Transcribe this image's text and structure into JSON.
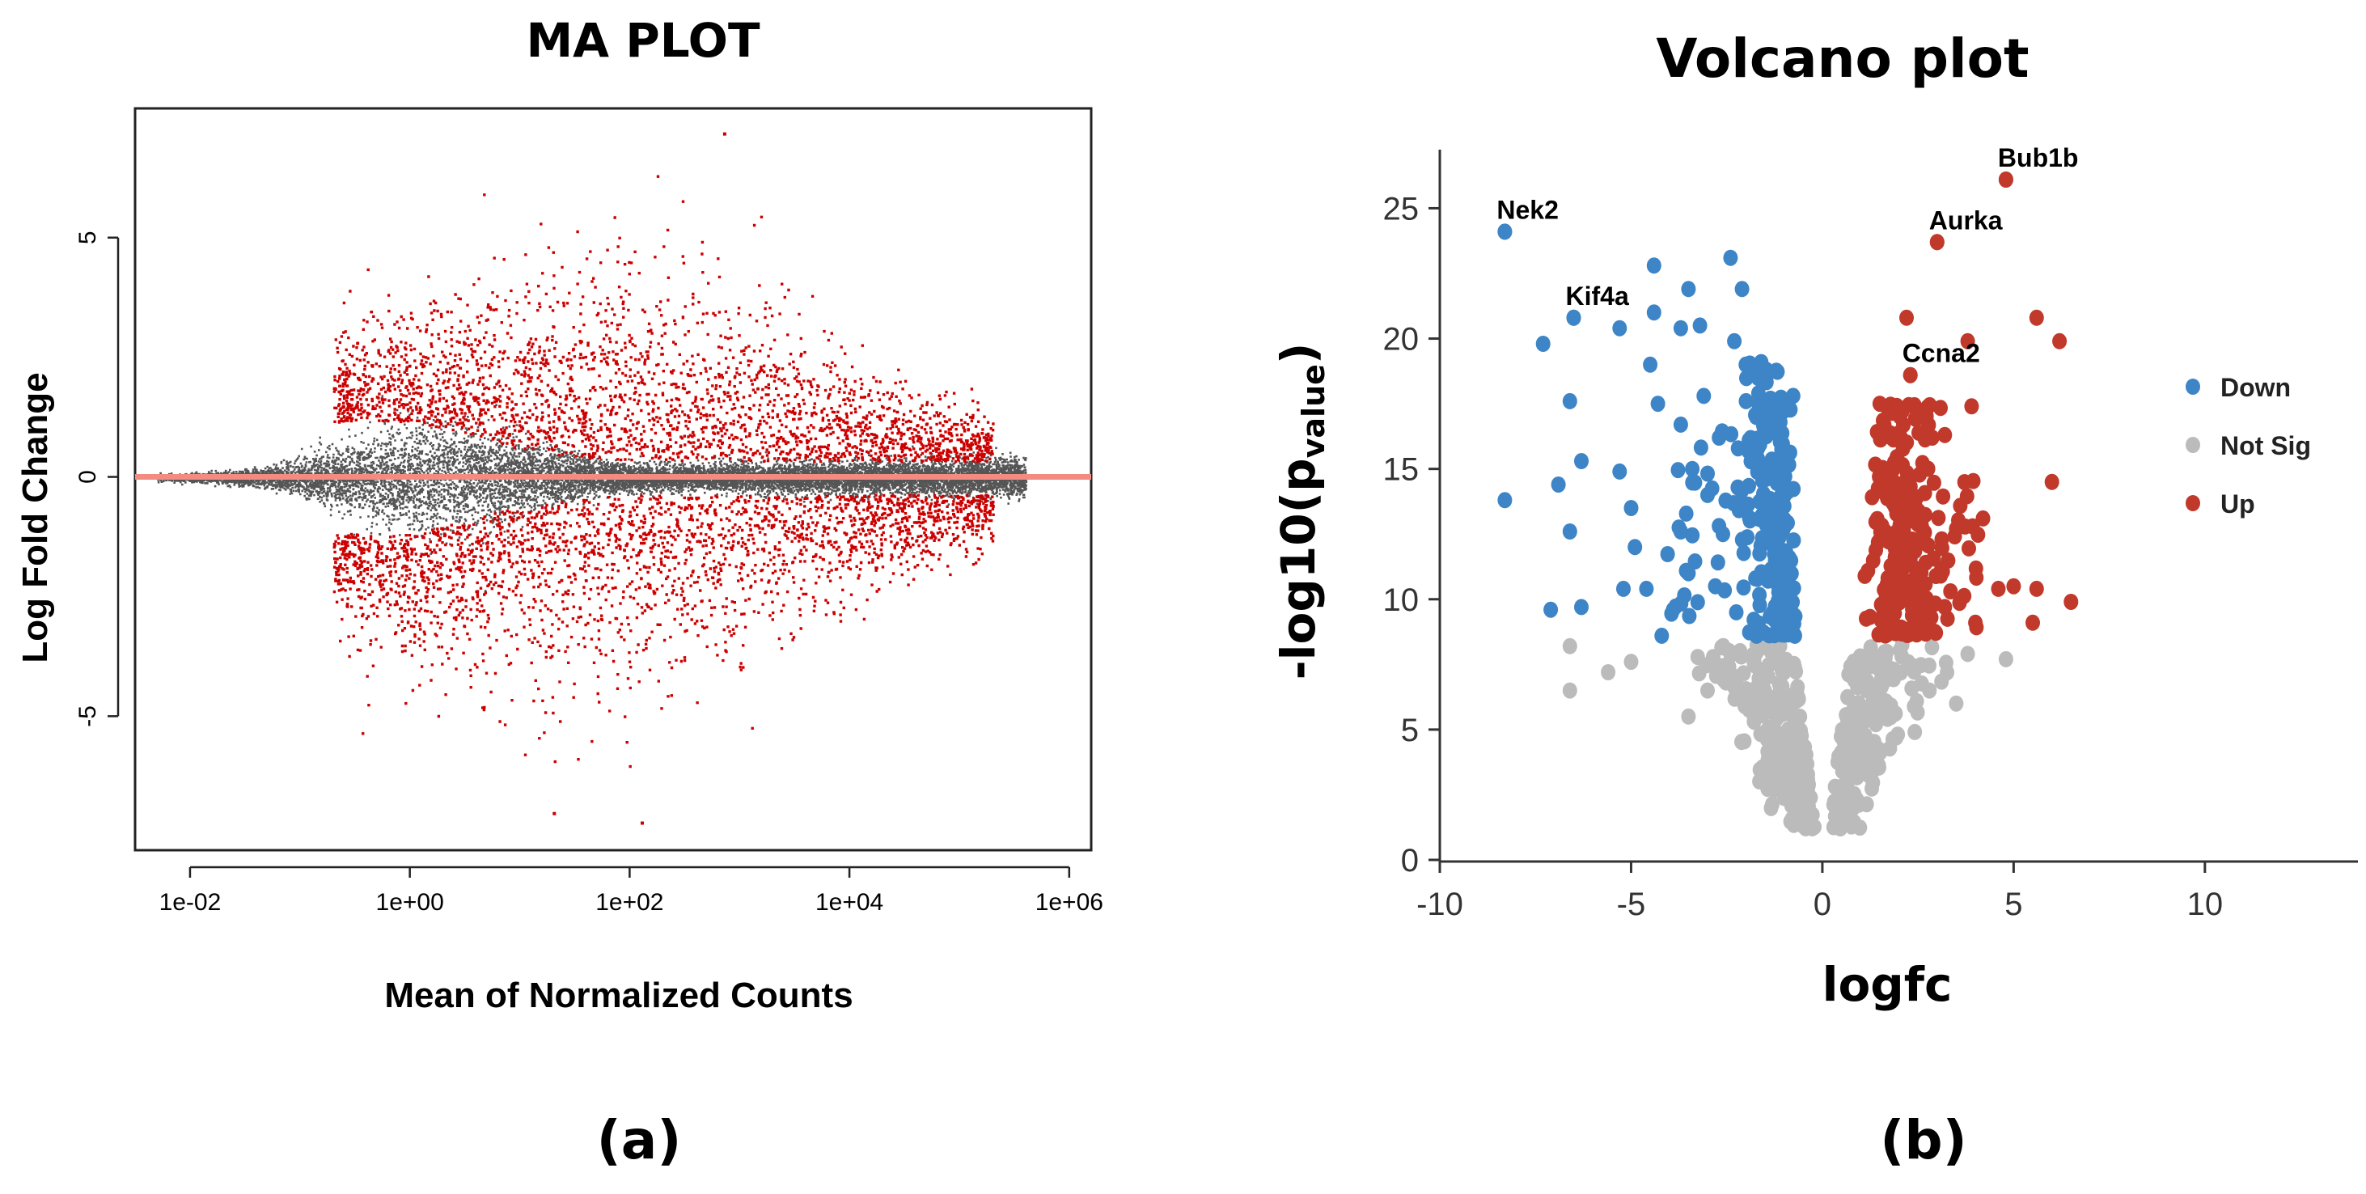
{
  "chart_data": [
    {
      "panel": "(a)",
      "type": "scatter",
      "title": "MA PLOT",
      "xlabel": "Mean of Normalized Counts",
      "ylabel": "Log Fold Change",
      "xscale": "log10",
      "xlim_log10": [
        -2.5,
        6.2
      ],
      "ylim": [
        -7.8,
        7.7
      ],
      "x_ticks": [
        "1e-02",
        "1e+00",
        "1e+02",
        "1e+04",
        "1e+06"
      ],
      "x_tick_values_log10": [
        -2,
        0,
        2,
        4,
        6
      ],
      "y_ticks": [
        "5",
        "0",
        "-5"
      ],
      "y_tick_values": [
        5,
        0,
        -5
      ],
      "reference_line": {
        "y": 0,
        "color": "#f28b82"
      },
      "series": [
        {
          "name": "not significant",
          "color": "#555555",
          "description": "dense funnel of points around 0 across all mean counts"
        },
        {
          "name": "significant",
          "color": "#cc0000",
          "description": "points with |LFC| beyond the noise funnel, mean counts ~1e-1 to ~1e+6, LFC range about -7.2 to 7.2"
        }
      ],
      "extreme_points": [
        {
          "log10_mean": 2.85,
          "lfc": 7.2
        },
        {
          "log10_mean": 2.1,
          "lfc": -7.2
        },
        {
          "log10_mean": 1.3,
          "lfc": -7.0
        }
      ]
    },
    {
      "panel": "(b)",
      "type": "scatter",
      "title": "Volcano plot",
      "xlabel": "logfc",
      "ylabel_main": "-log10(p",
      "ylabel_sub": "value",
      "ylabel_close": ")",
      "xlim": [
        -10,
        14
      ],
      "ylim": [
        0,
        27
      ],
      "x_ticks": [
        "-10",
        "-5",
        "0",
        "5",
        "10"
      ],
      "x_tick_values": [
        -10,
        -5,
        0,
        5,
        10
      ],
      "y_ticks": [
        "0",
        "5",
        "10",
        "15",
        "20",
        "25"
      ],
      "y_tick_values": [
        0,
        5,
        10,
        15,
        20,
        25
      ],
      "legend": {
        "position": "right",
        "entries": [
          {
            "label": "Down",
            "color": "#3d85c6"
          },
          {
            "label": "Not Sig",
            "color": "#bbbbbb"
          },
          {
            "label": "Up",
            "color": "#c0392b"
          }
        ]
      },
      "significance_threshold_neglog10p": 8.5,
      "labeled_genes": [
        {
          "gene": "Nek2",
          "x": -8.3,
          "y": 24.1,
          "group": "Down"
        },
        {
          "gene": "Kif4a",
          "x": -6.5,
          "y": 20.8,
          "group": "Down"
        },
        {
          "gene": "Bub1b",
          "x": 4.8,
          "y": 26.1,
          "group": "Up"
        },
        {
          "gene": "Aurka",
          "x": 3.0,
          "y": 23.7,
          "group": "Up"
        },
        {
          "gene": "Ccna2",
          "x": 2.3,
          "y": 18.6,
          "group": "Up"
        }
      ],
      "down_points": [
        [
          -8.3,
          24.1
        ],
        [
          -6.5,
          20.8
        ],
        [
          -7.3,
          19.8
        ],
        [
          -8.3,
          13.8
        ],
        [
          -6.6,
          17.6
        ],
        [
          -6.3,
          15.3
        ],
        [
          -6.9,
          14.4
        ],
        [
          -6.6,
          12.6
        ],
        [
          -7.1,
          9.6
        ],
        [
          -6.3,
          9.7
        ],
        [
          -5.3,
          20.4
        ],
        [
          -5.3,
          14.9
        ],
        [
          -5.0,
          13.5
        ],
        [
          -5.2,
          10.4
        ],
        [
          -4.6,
          10.4
        ],
        [
          -4.9,
          12.0
        ],
        [
          -4.4,
          22.8
        ],
        [
          -4.4,
          21.0
        ],
        [
          -4.3,
          17.5
        ],
        [
          -4.5,
          19.0
        ],
        [
          -3.5,
          21.9
        ],
        [
          -3.2,
          20.5
        ],
        [
          -2.4,
          23.1
        ],
        [
          -2.1,
          21.9
        ],
        [
          -2.3,
          19.9
        ],
        [
          -3.1,
          17.8
        ],
        [
          -2.7,
          16.2
        ],
        [
          -1.6,
          19.1
        ],
        [
          -2.0,
          19.0
        ],
        [
          -3.7,
          20.4
        ],
        [
          -3.7,
          16.7
        ],
        [
          -3.4,
          15.0
        ],
        [
          -3.0,
          14.0
        ],
        [
          -3.7,
          12.6
        ],
        [
          -3.5,
          11.0
        ],
        [
          -3.9,
          9.6
        ],
        [
          -4.2,
          8.6
        ],
        [
          -2.6,
          12.5
        ],
        [
          -2.2,
          13.6
        ],
        [
          -2.8,
          10.5
        ]
      ],
      "up_points": [
        [
          4.8,
          26.1
        ],
        [
          3.0,
          23.7
        ],
        [
          2.3,
          18.6
        ],
        [
          3.8,
          19.9
        ],
        [
          2.2,
          20.8
        ],
        [
          5.6,
          20.8
        ],
        [
          6.2,
          19.9
        ],
        [
          1.5,
          17.5
        ],
        [
          2.6,
          17.0
        ],
        [
          3.9,
          17.4
        ],
        [
          3.2,
          16.3
        ],
        [
          6.0,
          14.5
        ],
        [
          2.0,
          15.2
        ],
        [
          3.5,
          12.7
        ],
        [
          4.2,
          13.1
        ],
        [
          4.6,
          10.4
        ],
        [
          5.0,
          10.5
        ],
        [
          5.6,
          10.4
        ],
        [
          6.5,
          9.9
        ],
        [
          5.5,
          9.1
        ],
        [
          4.0,
          9.1
        ],
        [
          3.2,
          9.7
        ],
        [
          2.7,
          11.4
        ]
      ],
      "notsig_points": [
        [
          -6.6,
          8.2
        ],
        [
          -6.6,
          6.5
        ],
        [
          -5.6,
          7.2
        ],
        [
          -5.0,
          7.6
        ],
        [
          4.8,
          7.7
        ],
        [
          3.8,
          7.9
        ],
        [
          3.5,
          6.0
        ],
        [
          -3.5,
          5.5
        ],
        [
          -3.0,
          6.5
        ],
        [
          2.8,
          6.5
        ]
      ]
    }
  ],
  "captions": {
    "left": "(a)",
    "right": "(b)"
  }
}
